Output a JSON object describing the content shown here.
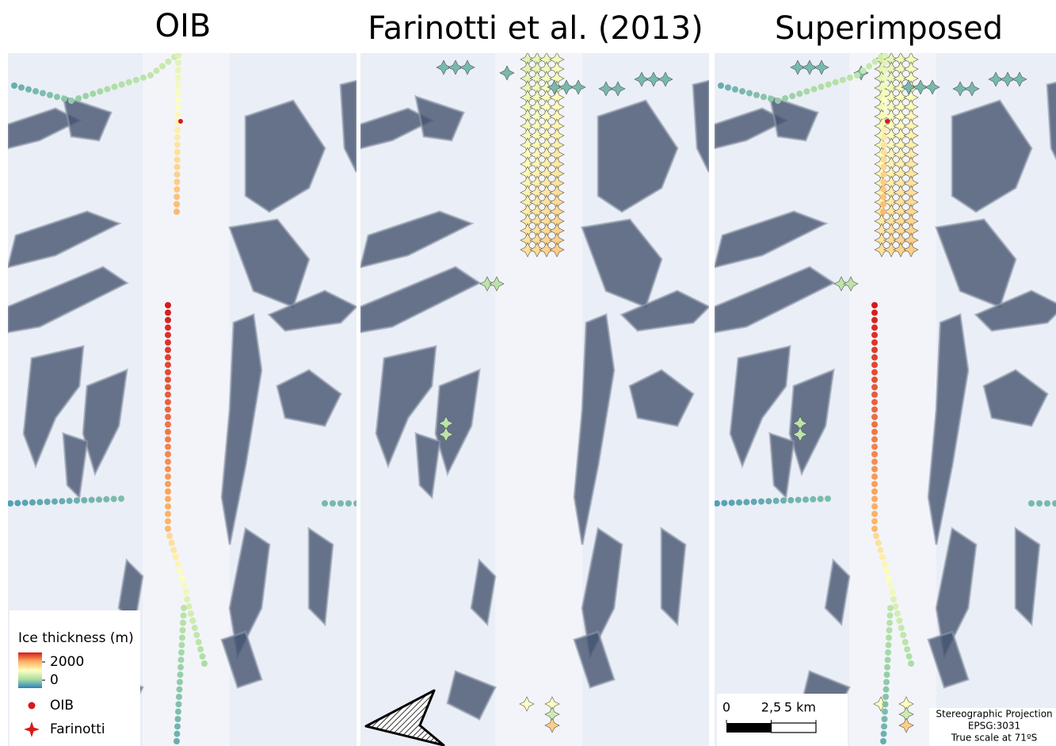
{
  "panels": [
    {
      "title": "OIB"
    },
    {
      "title": "Farinotti et al. (2013)"
    },
    {
      "title": "Superimposed"
    }
  ],
  "legend": {
    "title": "Ice thickness (m)",
    "colorbar_ticks": [
      2000,
      0
    ],
    "items": [
      "OIB",
      "Farinotti"
    ]
  },
  "scale_bar": {
    "ticks": [
      0,
      {
        "value": 2.5,
        "label": "2,5"
      },
      {
        "value": 5,
        "label": "5 km"
      }
    ]
  },
  "projection": [
    "Stereographic Projection",
    "EPSG:3031",
    "True scale at 71ºS"
  ]
}
